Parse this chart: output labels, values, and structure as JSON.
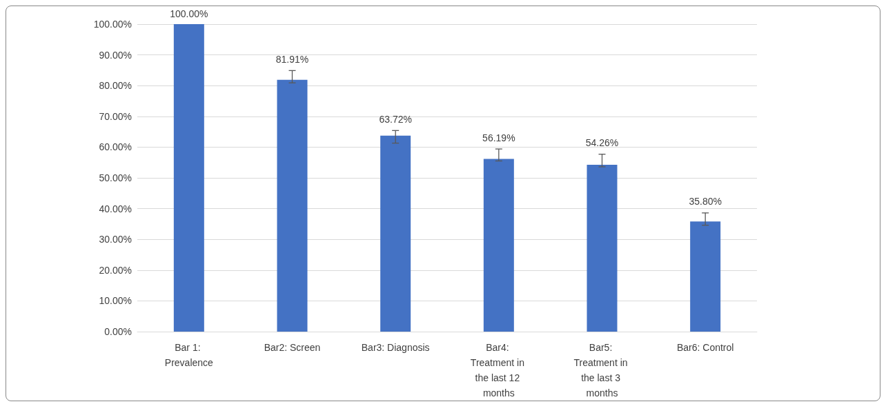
{
  "chart_data": {
    "type": "bar",
    "categories": [
      "Bar 1: Prevalence",
      "Bar2: Screen",
      "Bar3: Diagnosis",
      "Bar4: Treatment in the last 12 months",
      "Bar5: Treatment in the last 3 months",
      "Bar6: Control"
    ],
    "values": [
      100.0,
      81.91,
      63.72,
      56.19,
      54.26,
      35.8
    ],
    "value_labels": [
      "100.00%",
      "81.91%",
      "63.72%",
      "56.19%",
      "54.26%",
      "35.80%"
    ],
    "errors": [
      null,
      [
        80.9,
        84.9
      ],
      [
        61.3,
        65.4
      ],
      [
        55.5,
        59.4
      ],
      [
        53.6,
        57.7
      ],
      [
        34.6,
        38.6
      ]
    ],
    "color": "#4472c4",
    "ylim": [
      0,
      100
    ],
    "yticks": [
      {
        "value": 0,
        "label": "0.00%"
      },
      {
        "value": 10,
        "label": "10.00%"
      },
      {
        "value": 20,
        "label": "20.00%"
      },
      {
        "value": 30,
        "label": "30.00%"
      },
      {
        "value": 40,
        "label": "40.00%"
      },
      {
        "value": 50,
        "label": "50.00%"
      },
      {
        "value": 60,
        "label": "60.00%"
      },
      {
        "value": 70,
        "label": "70.00%"
      },
      {
        "value": 80,
        "label": "80.00%"
      },
      {
        "value": 90,
        "label": "90.00%"
      },
      {
        "value": 100,
        "label": "100.00%"
      }
    ],
    "grid": "y"
  }
}
